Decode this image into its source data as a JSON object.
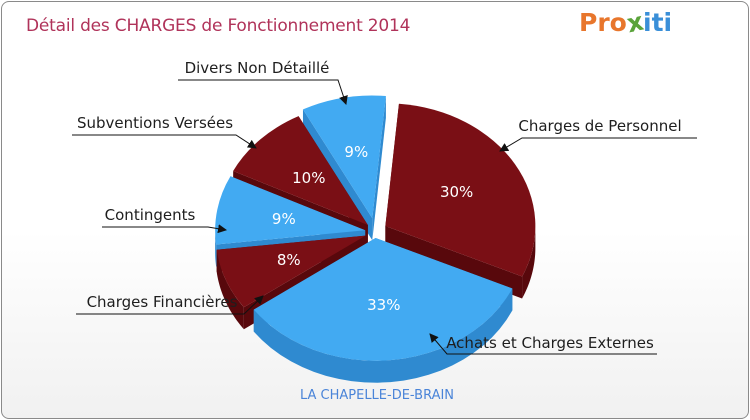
{
  "header": {
    "title": "Détail des CHARGES de Fonctionnement 2014",
    "logo_text": "Proxiti",
    "logo_letters": [
      {
        "ch": "P",
        "color": "#e8762c"
      },
      {
        "ch": "r",
        "color": "#e8762c"
      },
      {
        "ch": "o",
        "color": "#e8762c"
      },
      {
        "ch": "x",
        "color": "#5aa33a"
      },
      {
        "ch": "i",
        "color": "#3a8fd8"
      },
      {
        "ch": "t",
        "color": "#3a8fd8"
      },
      {
        "ch": "i",
        "color": "#3a8fd8"
      }
    ]
  },
  "footer": {
    "commune": "LA CHAPELLE-DE-BRAIN"
  },
  "colors": {
    "dark_top": "#7a0f15",
    "dark_side": "#58080c",
    "blue_top": "#42aaf2",
    "blue_side": "#2f8ad0"
  },
  "chart_data": {
    "type": "pie",
    "title": "Détail des CHARGES de Fonctionnement 2014",
    "style": "3d-exploded",
    "series": [
      {
        "name": "Charges de Personnel",
        "value": 30,
        "label": "30%",
        "color": "dark"
      },
      {
        "name": "Achats et Charges Externes",
        "value": 33,
        "label": "33%",
        "color": "blue"
      },
      {
        "name": "Charges Financières",
        "value": 8,
        "label": "8%",
        "color": "dark"
      },
      {
        "name": "Contingents",
        "value": 9,
        "label": "9%",
        "color": "blue"
      },
      {
        "name": "Subventions Versées",
        "value": 10,
        "label": "10%",
        "color": "dark"
      },
      {
        "name": "Divers Non Détaillé",
        "value": 9,
        "label": "9%",
        "color": "blue"
      }
    ]
  }
}
